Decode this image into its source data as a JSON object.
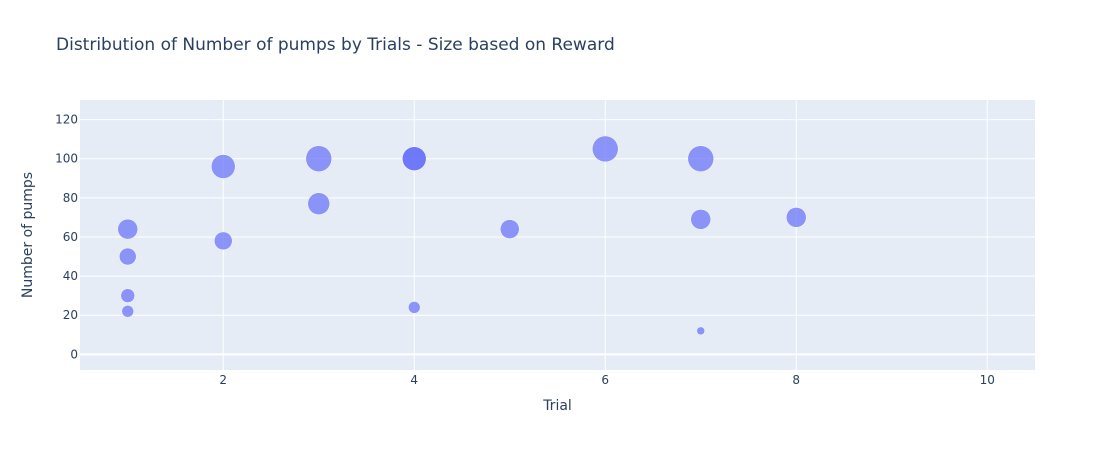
{
  "chart_data": {
    "type": "scatter",
    "title": "Distribution of Number of pumps by Trials - Size based on Reward",
    "xlabel": "Trial",
    "ylabel": "Number of pumps",
    "xlim": [
      0.5,
      10.5
    ],
    "ylim": [
      -8,
      130
    ],
    "x_ticks": [
      2,
      4,
      6,
      8,
      10
    ],
    "y_ticks": [
      0,
      20,
      40,
      60,
      80,
      100,
      120
    ],
    "grid": true,
    "legend": "none",
    "marker_color": "#636efa",
    "background_color": "#e5ecf6",
    "points": [
      {
        "x": 1,
        "y": 64,
        "size": 10
      },
      {
        "x": 1,
        "y": 50,
        "size": 8.5
      },
      {
        "x": 1,
        "y": 30,
        "size": 7
      },
      {
        "x": 1,
        "y": 22,
        "size": 6
      },
      {
        "x": 2,
        "y": 96,
        "size": 12
      },
      {
        "x": 2,
        "y": 58,
        "size": 9
      },
      {
        "x": 3,
        "y": 100,
        "size": 13
      },
      {
        "x": 3,
        "y": 77,
        "size": 11
      },
      {
        "x": 4,
        "y": 100,
        "size": 12
      },
      {
        "x": 4,
        "y": 100,
        "size": 12
      },
      {
        "x": 4,
        "y": 24,
        "size": 6
      },
      {
        "x": 5,
        "y": 64,
        "size": 9.5
      },
      {
        "x": 6,
        "y": 105,
        "size": 13
      },
      {
        "x": 7,
        "y": 100,
        "size": 13
      },
      {
        "x": 7,
        "y": 69,
        "size": 10
      },
      {
        "x": 7,
        "y": 12,
        "size": 4
      },
      {
        "x": 8,
        "y": 70,
        "size": 10
      }
    ]
  }
}
